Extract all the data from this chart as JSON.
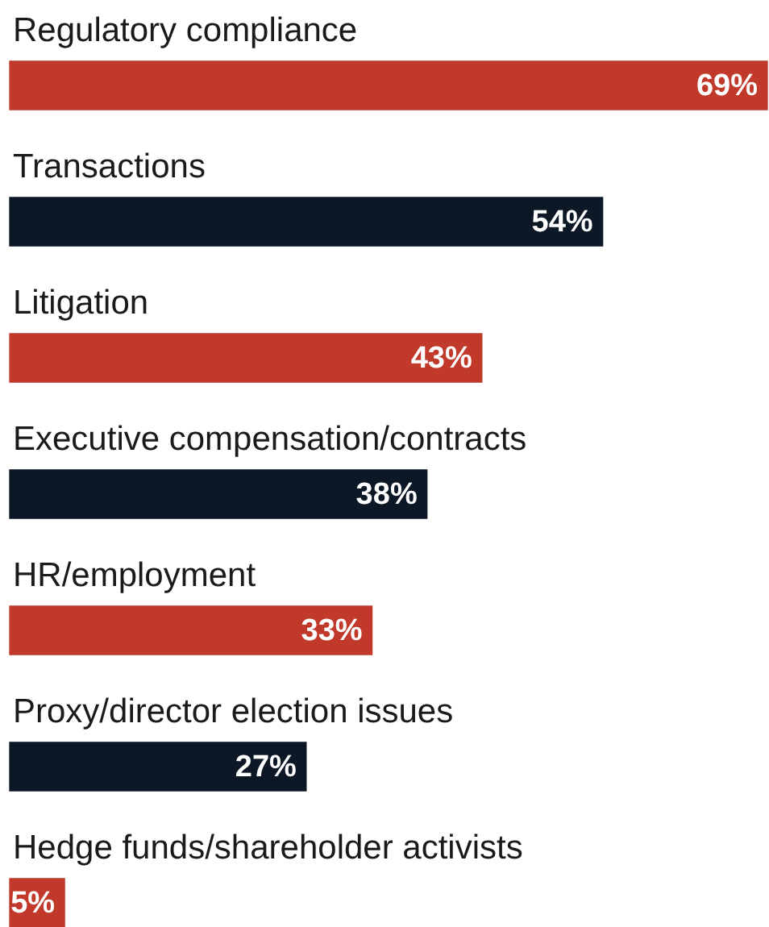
{
  "chart_data": {
    "type": "bar",
    "orientation": "horizontal",
    "categories": [
      "Regulatory compliance",
      "Transactions",
      "Litigation",
      "Executive compensation/contracts",
      "HR/employment",
      "Proxy/director election issues",
      "Hedge funds/shareholder activists"
    ],
    "values": [
      69,
      54,
      43,
      38,
      33,
      27,
      5
    ],
    "colors": [
      "#c0392b",
      "#0d1826",
      "#c0392b",
      "#0d1826",
      "#c0392b",
      "#0d1826",
      "#c0392b"
    ],
    "value_labels": [
      "69%",
      "54%",
      "43%",
      "38%",
      "33%",
      "27%",
      "5%"
    ],
    "xlim": [
      0,
      69
    ]
  }
}
